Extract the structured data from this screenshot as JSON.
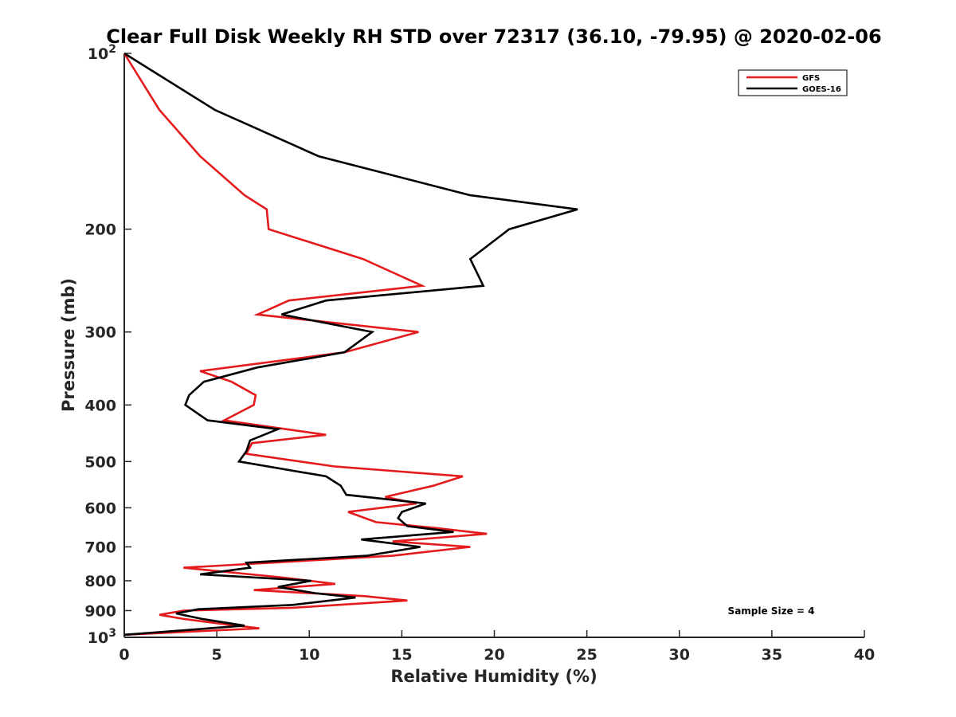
{
  "chart_data": {
    "type": "line",
    "title": "Clear Full Disk Weekly RH STD over 72317 (36.10, -79.95) @ 2020-02-06",
    "xlabel": "Relative Humidity (%)",
    "ylabel": "Pressure (mb)",
    "xlim": [
      0,
      40
    ],
    "ylim": [
      100,
      1000
    ],
    "y_scale": "log",
    "y_reversed": true,
    "x_ticks": [
      "0",
      "5",
      "10",
      "15",
      "20",
      "25",
      "30",
      "35",
      "40"
    ],
    "y_ticks": [
      {
        "value": 100,
        "base": "10",
        "exp": "2"
      },
      {
        "value": 200,
        "label": "200"
      },
      {
        "value": 300,
        "label": "300"
      },
      {
        "value": 400,
        "label": "400"
      },
      {
        "value": 500,
        "label": "500"
      },
      {
        "value": 600,
        "label": "600"
      },
      {
        "value": 700,
        "label": "700"
      },
      {
        "value": 800,
        "label": "800"
      },
      {
        "value": 900,
        "label": "900"
      },
      {
        "value": 1000,
        "base": "10",
        "exp": "3"
      }
    ],
    "legend_position": "top-right",
    "annotation": "Sample Size = 4",
    "series": [
      {
        "name": "GFS",
        "color": "#e41a1c",
        "points": [
          [
            0,
            100
          ],
          [
            1.9,
            125
          ],
          [
            4.1,
            150
          ],
          [
            6.5,
            175
          ],
          [
            7.7,
            185
          ],
          [
            7.8,
            200
          ],
          [
            12.9,
            225
          ],
          [
            16.1,
            250
          ],
          [
            8.9,
            265
          ],
          [
            7.2,
            280
          ],
          [
            15.9,
            300
          ],
          [
            11.9,
            325
          ],
          [
            4.1,
            350
          ],
          [
            5.8,
            365
          ],
          [
            7.1,
            385
          ],
          [
            7.0,
            400
          ],
          [
            5.4,
            425
          ],
          [
            10.9,
            450
          ],
          [
            6.9,
            465
          ],
          [
            6.6,
            485
          ],
          [
            11.4,
            510
          ],
          [
            18.3,
            530
          ],
          [
            16.7,
            550
          ],
          [
            14.1,
            575
          ],
          [
            15.8,
            590
          ],
          [
            12.1,
            610
          ],
          [
            13.6,
            635
          ],
          [
            16.9,
            650
          ],
          [
            19.6,
            665
          ],
          [
            14.5,
            685
          ],
          [
            18.7,
            700
          ],
          [
            14.5,
            725
          ],
          [
            3.2,
            760
          ],
          [
            8.6,
            790
          ],
          [
            11.4,
            810
          ],
          [
            7.0,
            830
          ],
          [
            13.0,
            850
          ],
          [
            15.3,
            865
          ],
          [
            9.1,
            890
          ],
          [
            3.2,
            900
          ],
          [
            1.9,
            915
          ],
          [
            3.2,
            930
          ],
          [
            5.5,
            950
          ],
          [
            7.3,
            965
          ],
          [
            0,
            990
          ]
        ]
      },
      {
        "name": "GOES-16",
        "color": "#000000",
        "points": [
          [
            0,
            100
          ],
          [
            4.9,
            125
          ],
          [
            10.5,
            150
          ],
          [
            18.7,
            175
          ],
          [
            24.5,
            185
          ],
          [
            20.8,
            200
          ],
          [
            18.7,
            225
          ],
          [
            19.4,
            250
          ],
          [
            10.9,
            265
          ],
          [
            8.5,
            280
          ],
          [
            13.4,
            300
          ],
          [
            11.9,
            325
          ],
          [
            7.2,
            345
          ],
          [
            4.3,
            365
          ],
          [
            3.5,
            385
          ],
          [
            3.3,
            400
          ],
          [
            4.5,
            425
          ],
          [
            8.3,
            440
          ],
          [
            6.8,
            460
          ],
          [
            6.6,
            480
          ],
          [
            6.2,
            500
          ],
          [
            10.9,
            530
          ],
          [
            11.7,
            550
          ],
          [
            12.0,
            570
          ],
          [
            16.3,
            590
          ],
          [
            15.0,
            610
          ],
          [
            14.8,
            625
          ],
          [
            15.3,
            645
          ],
          [
            17.8,
            660
          ],
          [
            12.8,
            680
          ],
          [
            16.0,
            700
          ],
          [
            13.1,
            725
          ],
          [
            6.6,
            745
          ],
          [
            6.8,
            760
          ],
          [
            4.1,
            780
          ],
          [
            10.1,
            800
          ],
          [
            8.3,
            820
          ],
          [
            10.3,
            840
          ],
          [
            12.5,
            855
          ],
          [
            9.1,
            880
          ],
          [
            4.0,
            895
          ],
          [
            2.8,
            910
          ],
          [
            4.2,
            930
          ],
          [
            6.5,
            955
          ],
          [
            0,
            990
          ]
        ]
      }
    ]
  }
}
